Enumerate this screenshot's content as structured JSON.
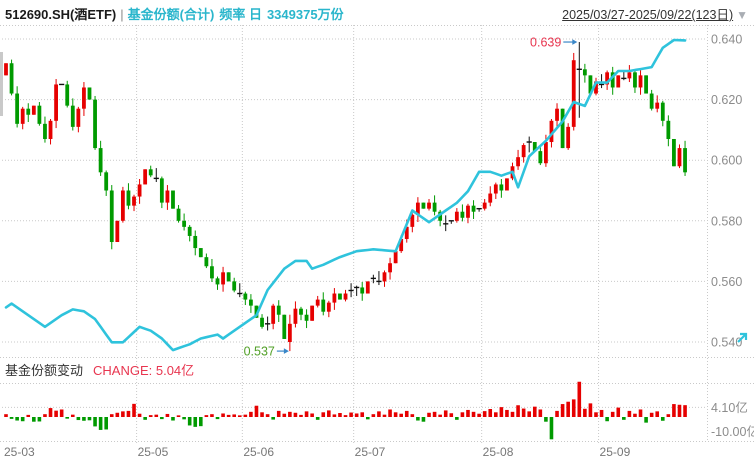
{
  "header": {
    "instrument": "512690.SH(酒ETF)",
    "separator": "|",
    "series_name": "基金份额(合计)",
    "frequency": "频率 日",
    "shares_value": "3349375万份",
    "date_range": "2025/03/27-2025/09/22(123日)",
    "dropdown_icon": "▼"
  },
  "volume_pane": {
    "title": "基金份额变动",
    "change_label": "CHANGE: 5.04亿"
  },
  "colors": {
    "up": "#e60000",
    "down": "#009a00",
    "doji": "#111111",
    "line": "#2fc3dc",
    "grid": "#c9c9c9",
    "axis_text": "#8c8c8c",
    "x_text": "#777777",
    "annotation_high": "#e8354f",
    "annotation_low": "#52a028",
    "arrow": "#3a87c8"
  },
  "chart_data": {
    "type": "candlestick+line+bar",
    "title": "512690.SH(酒ETF) 基金份额(合计) 日线",
    "start_date": "2025/03/27",
    "end_date": "2025/09/22",
    "days": 123,
    "price_axis": {
      "tick_values": [
        0.64,
        0.62,
        0.6,
        0.58,
        0.56,
        0.54
      ],
      "tick_labels": [
        "0.640",
        "0.620",
        "0.600",
        "0.580",
        "0.560",
        "0.540"
      ],
      "ylim": [
        0.535,
        0.643
      ]
    },
    "x_axis": {
      "labels": [
        "25-03",
        "25-05",
        "25-06",
        "25-07",
        "25-08",
        "25-09"
      ],
      "indices": [
        0,
        24,
        43,
        63,
        86,
        107
      ]
    },
    "first_open": 0.628,
    "close": [
      0.632,
      0.622,
      0.612,
      0.617,
      0.615,
      0.618,
      0.612,
      0.607,
      0.613,
      0.625,
      0.625,
      0.618,
      0.611,
      0.617,
      0.624,
      0.62,
      0.604,
      0.596,
      0.59,
      0.573,
      0.58,
      0.59,
      0.585,
      0.588,
      0.592,
      0.597,
      0.595,
      0.594,
      0.586,
      0.59,
      0.584,
      0.58,
      0.578,
      0.575,
      0.571,
      0.568,
      0.565,
      0.561,
      0.559,
      0.563,
      0.56,
      0.557,
      0.556,
      0.554,
      0.552,
      0.548,
      0.545,
      0.546,
      0.552,
      0.549,
      0.541,
      0.546,
      0.551,
      0.549,
      0.547,
      0.552,
      0.554,
      0.55,
      0.553,
      0.556,
      0.554,
      0.556,
      0.557,
      0.558,
      0.556,
      0.56,
      0.561,
      0.56,
      0.563,
      0.566,
      0.57,
      0.574,
      0.578,
      0.582,
      0.586,
      0.584,
      0.586,
      0.583,
      0.58,
      0.579,
      0.58,
      0.583,
      0.581,
      0.585,
      0.583,
      0.584,
      0.586,
      0.589,
      0.592,
      0.59,
      0.594,
      0.598,
      0.601,
      0.605,
      0.606,
      0.603,
      0.599,
      0.606,
      0.613,
      0.617,
      0.604,
      0.611,
      0.633,
      0.63,
      0.628,
      0.622,
      0.626,
      0.625,
      0.629,
      0.624,
      0.628,
      0.627,
      0.629,
      0.624,
      0.628,
      0.622,
      0.617,
      0.619,
      0.613,
      0.607,
      0.598,
      0.604,
      0.596
    ],
    "special_candles": [
      {
        "index": 51,
        "open": 0.54,
        "close": 0.546,
        "high": 0.549,
        "low": 0.537
      },
      {
        "index": 103,
        "open": 0.63,
        "close": 0.63,
        "high": 0.639,
        "low": 0.614
      }
    ],
    "high_point": {
      "index": 103,
      "price": 0.639,
      "label": "0.639"
    },
    "low_point": {
      "index": 51,
      "price": 0.537,
      "label": "0.537"
    },
    "line_series": {
      "name": "基金份额(合计)",
      "unit": "亿份",
      "last_value": "3349375万份",
      "points": [
        [
          0,
          266
        ],
        [
          1,
          267
        ],
        [
          3,
          265
        ],
        [
          7,
          261
        ],
        [
          10,
          264
        ],
        [
          12,
          265.5
        ],
        [
          14,
          265
        ],
        [
          16,
          263
        ],
        [
          19,
          257
        ],
        [
          21,
          257
        ],
        [
          24,
          261
        ],
        [
          26,
          260
        ],
        [
          28,
          258
        ],
        [
          30,
          255
        ],
        [
          33,
          256.5
        ],
        [
          35,
          258
        ],
        [
          38,
          259
        ],
        [
          39,
          258
        ],
        [
          42,
          261
        ],
        [
          45,
          264
        ],
        [
          47,
          270.5
        ],
        [
          50,
          276
        ],
        [
          52,
          278
        ],
        [
          54,
          278
        ],
        [
          55,
          276
        ],
        [
          57,
          277
        ],
        [
          60,
          279
        ],
        [
          63,
          280.5
        ],
        [
          66,
          281
        ],
        [
          70,
          280.5
        ],
        [
          73,
          291
        ],
        [
          76,
          288
        ],
        [
          77,
          289
        ],
        [
          81,
          293
        ],
        [
          83,
          296
        ],
        [
          85,
          301
        ],
        [
          87,
          301
        ],
        [
          89,
          300
        ],
        [
          91,
          301
        ],
        [
          92,
          297
        ],
        [
          94,
          305
        ],
        [
          97,
          309
        ],
        [
          100,
          314
        ],
        [
          102,
          319
        ],
        [
          104,
          318
        ],
        [
          106,
          324
        ],
        [
          108,
          324
        ],
        [
          110,
          327
        ],
        [
          112,
          327
        ],
        [
          114,
          327.5
        ],
        [
          116,
          328
        ],
        [
          118,
          333
        ],
        [
          120,
          335
        ],
        [
          122,
          334.9
        ]
      ]
    },
    "volume_axis": {
      "tick_values": [
        4.1,
        -10.0
      ],
      "tick_labels": [
        "4.10亿",
        "-10.00亿"
      ],
      "unit": "亿"
    },
    "volume_change": [
      1.2,
      -0.8,
      -1.5,
      -1.8,
      0.9,
      -2.0,
      -1.9,
      1.2,
      3.8,
      2.7,
      3.2,
      -0.7,
      1.0,
      -1.3,
      -1.6,
      -1.4,
      -4.0,
      -5.5,
      -5.3,
      1.2,
      1.8,
      2.4,
      2.6,
      5.6,
      1.4,
      -1.2,
      0.8,
      1.0,
      -0.9,
      1.3,
      -1.5,
      0.7,
      -1.0,
      -3.6,
      -4.2,
      -3.9,
      0.8,
      1.2,
      -0.9,
      1.5,
      0.9,
      1.1,
      0.7,
      1.0,
      2.2,
      4.8,
      2.0,
      1.2,
      -1.1,
      2.6,
      1.4,
      2.2,
      1.8,
      0.9,
      2.4,
      1.5,
      -1.2,
      2.0,
      2.8,
      1.1,
      1.7,
      0.8,
      1.9,
      1.5,
      2.0,
      -1.0,
      1.2,
      2.4,
      1.0,
      3.2,
      2.0,
      1.4,
      2.6,
      1.2,
      -1.5,
      -2.0,
      1.8,
      2.2,
      1.0,
      2.8,
      1.6,
      -1.2,
      2.0,
      3.0,
      2.2,
      1.4,
      2.5,
      3.4,
      2.0,
      4.2,
      3.0,
      2.2,
      5.0,
      3.6,
      2.4,
      4.4,
      3.2,
      -2.0,
      -9.5,
      2.6,
      5.5,
      6.5,
      7.5,
      15.0,
      3.5,
      5.8,
      2.0,
      3.0,
      -1.8,
      2.2,
      4.0,
      -1.2,
      2.6,
      1.4,
      3.2,
      -2.4,
      1.8,
      2.4,
      -1.6,
      1.2,
      5.5,
      5.2,
      5.04
    ]
  }
}
